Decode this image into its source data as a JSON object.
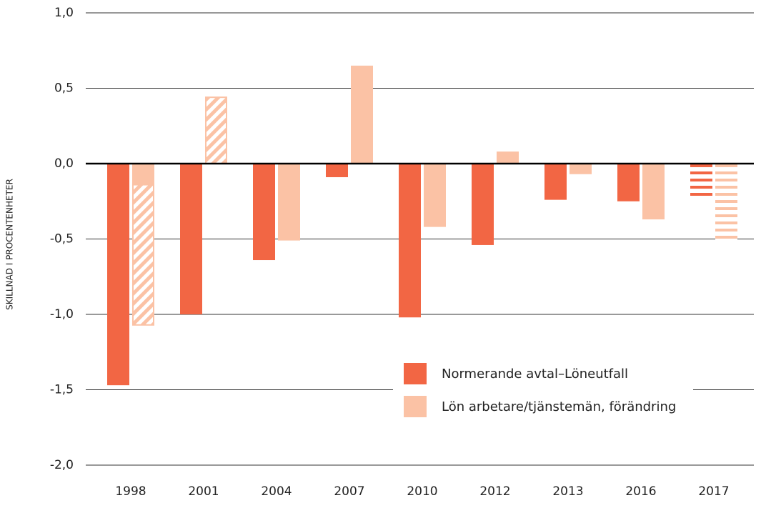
{
  "chart_data": {
    "type": "bar",
    "y_label": "SKILLNAD I PROCENTENHETER",
    "categories": [
      "1998",
      "2001",
      "2004",
      "2007",
      "2010",
      "2012",
      "2013",
      "2016",
      "2017"
    ],
    "series": [
      {
        "name": "Normerande avtal–Löneutfall",
        "color": "#f26644",
        "values": [
          -1.47,
          -1.0,
          -0.64,
          -0.09,
          -1.02,
          -0.54,
          -0.24,
          -0.25,
          -0.24
        ]
      },
      {
        "name": "Lön arbetare/tjänstemän, förändring",
        "color": "#fbc2a5",
        "values": [
          -1.07,
          0.31,
          -0.51,
          0.65,
          -0.42,
          0.08,
          -0.07,
          -0.37,
          -0.52
        ],
        "hatch_values": [
          -0.93,
          -0.44,
          null,
          null,
          null,
          null,
          null,
          null,
          null
        ]
      }
    ],
    "striped_index": 8,
    "ylim": [
      -2.0,
      1.0
    ],
    "yticks": [
      {
        "value": 1.0,
        "label": "1,0"
      },
      {
        "value": 0.5,
        "label": "0,5"
      },
      {
        "value": 0.0,
        "label": "0,0"
      },
      {
        "value": -0.5,
        "label": "-0,5"
      },
      {
        "value": -1.0,
        "label": "-1,0"
      },
      {
        "value": -1.5,
        "label": "-1,5"
      },
      {
        "value": -2.0,
        "label": "-2,0"
      }
    ],
    "grid": true,
    "legend": "lower right"
  }
}
